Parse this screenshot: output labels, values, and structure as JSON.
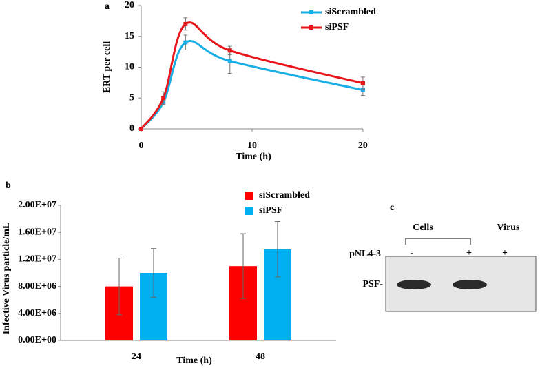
{
  "chart_data": [
    {
      "type": "line",
      "label": "a",
      "xlabel": "Time (h)",
      "ylabel": "ERT  per cell",
      "x": [
        0,
        2,
        4,
        8,
        20
      ],
      "series": [
        {
          "name": "siScrambled",
          "color": "#1aaee6",
          "values": [
            0,
            4.3,
            14,
            11,
            6.3
          ],
          "errors": [
            null,
            0.4,
            1.2,
            2,
            0.9
          ]
        },
        {
          "name": "siPSF",
          "color": "#e8161b",
          "values": [
            0,
            5,
            17,
            12.7,
            7.4
          ],
          "errors": [
            null,
            1,
            1,
            0.7,
            1
          ]
        }
      ],
      "xlim": [
        0,
        21
      ],
      "xticks": [
        0,
        10,
        20
      ],
      "ylim": [
        0,
        20
      ],
      "yticks": [
        0,
        5,
        10,
        15,
        20
      ],
      "legend": "top-right"
    },
    {
      "type": "bar",
      "label": "b",
      "xlabel": "Time (h)",
      "ylabel": "Infective Virus particle/mL",
      "categories": [
        "24",
        "48"
      ],
      "series": [
        {
          "name": "siScrambled",
          "color": "#fd0000",
          "values": [
            8000000,
            11000000
          ],
          "errors": [
            4200000,
            4800000
          ]
        },
        {
          "name": "siPSF",
          "color": "#00b0f0",
          "values": [
            10000000,
            13500000
          ],
          "errors": [
            3600000,
            4100000
          ]
        }
      ],
      "ylim": [
        0,
        20000000
      ],
      "yticks": [
        {
          "value": 0,
          "label": "0.00E+00"
        },
        {
          "value": 4000000,
          "label": "4.00E+06"
        },
        {
          "value": 8000000,
          "label": "8.00E+06"
        },
        {
          "value": 12000000,
          "label": "1.20E+07"
        },
        {
          "value": 16000000,
          "label": "1.60E+07"
        },
        {
          "value": 20000000,
          "label": "2.00E+07"
        }
      ],
      "legend": "top-right"
    }
  ],
  "blot": {
    "label": "c",
    "groups": [
      "Cells",
      "Virus"
    ],
    "row_label": "pNL4-3",
    "lanes": [
      "-",
      "+",
      "+"
    ],
    "band_label": "PSF-"
  }
}
